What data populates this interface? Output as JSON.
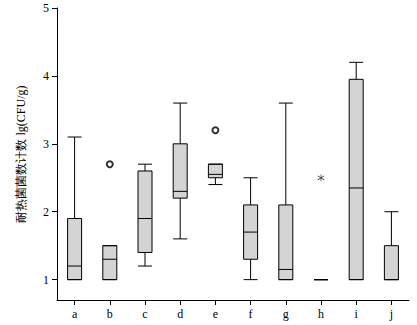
{
  "chart_data": {
    "type": "boxplot",
    "y_label": "耐热菌菌数计数 lg(CFU/g)",
    "categories": [
      "a",
      "b",
      "c",
      "d",
      "e",
      "f",
      "g",
      "h",
      "i",
      "j"
    ],
    "boxes": [
      [
        1.0,
        1.0,
        1.2,
        1.9,
        3.1
      ],
      [
        1.0,
        1.0,
        1.3,
        1.5,
        1.5
      ],
      [
        1.2,
        1.4,
        1.9,
        2.6,
        2.7
      ],
      [
        1.6,
        2.2,
        2.3,
        3.0,
        3.6
      ],
      [
        2.4,
        2.5,
        2.55,
        2.7,
        2.7
      ],
      [
        1.0,
        1.3,
        1.7,
        2.1,
        2.5
      ],
      [
        1.0,
        1.0,
        1.15,
        2.1,
        3.6
      ],
      [
        1.0,
        1.0,
        1.0,
        1.0,
        1.0
      ],
      [
        1.0,
        1.0,
        2.35,
        3.95,
        4.2
      ],
      [
        1.0,
        1.0,
        1.0,
        1.5,
        2.0
      ]
    ],
    "outliers": [
      {
        "category": "b",
        "value": 2.7,
        "marker": "circle"
      },
      {
        "category": "e",
        "value": 3.2,
        "marker": "circle"
      },
      {
        "category": "h",
        "value": 2.5,
        "marker": "star"
      }
    ],
    "color": "#d4d4d4",
    "ylim": [
      0.7,
      5
    ],
    "yticks": [
      1,
      2,
      3,
      4,
      5
    ],
    "grid": false
  }
}
